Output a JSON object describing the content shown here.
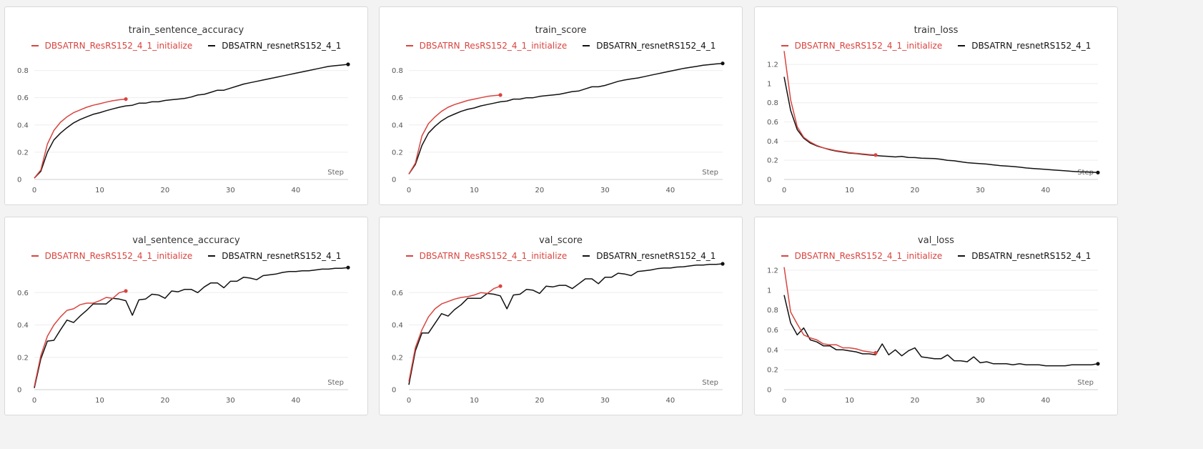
{
  "chart_data": [
    {
      "type": "line",
      "title": "train_sentence_accuracy",
      "xlabel": "Step",
      "xlim": [
        0,
        48
      ],
      "ylim": [
        0,
        0.95
      ],
      "xticks": [
        0,
        10,
        20,
        30,
        40
      ],
      "yticks": [
        0,
        0.2,
        0.4,
        0.6,
        0.8
      ],
      "ytick_labels": [
        "0",
        "0.2",
        "0.4",
        "0.6",
        "0.8"
      ],
      "legend_position": "top-center",
      "grid": true,
      "series": [
        {
          "name": "DBSATRN_ResRS152_4_1_initialize",
          "color": "#d9443f",
          "x": [
            0,
            1,
            2,
            3,
            4,
            5,
            6,
            7,
            8,
            9,
            10,
            11,
            12,
            13,
            14
          ],
          "y": [
            0.01,
            0.07,
            0.26,
            0.36,
            0.42,
            0.46,
            0.49,
            0.51,
            0.53,
            0.545,
            0.556,
            0.568,
            0.578,
            0.585,
            0.59
          ]
        },
        {
          "name": "DBSATRN_resnetRS152_4_1",
          "color": "#111111",
          "x": [
            0,
            1,
            2,
            3,
            4,
            5,
            6,
            7,
            8,
            9,
            10,
            11,
            12,
            13,
            14,
            15,
            16,
            17,
            18,
            19,
            20,
            21,
            22,
            23,
            24,
            25,
            26,
            27,
            28,
            29,
            30,
            31,
            32,
            33,
            34,
            35,
            36,
            37,
            38,
            39,
            40,
            41,
            42,
            43,
            44,
            45,
            46,
            47,
            48
          ],
          "y": [
            0.01,
            0.06,
            0.2,
            0.29,
            0.34,
            0.38,
            0.415,
            0.44,
            0.46,
            0.478,
            0.49,
            0.505,
            0.518,
            0.53,
            0.54,
            0.545,
            0.56,
            0.56,
            0.57,
            0.57,
            0.58,
            0.585,
            0.59,
            0.595,
            0.605,
            0.62,
            0.625,
            0.64,
            0.655,
            0.655,
            0.67,
            0.685,
            0.7,
            0.71,
            0.72,
            0.73,
            0.74,
            0.75,
            0.76,
            0.77,
            0.78,
            0.79,
            0.8,
            0.81,
            0.82,
            0.83,
            0.835,
            0.84,
            0.845
          ]
        }
      ]
    },
    {
      "type": "line",
      "title": "train_score",
      "xlabel": "Step",
      "xlim": [
        0,
        48
      ],
      "ylim": [
        0,
        0.95
      ],
      "xticks": [
        0,
        10,
        20,
        30,
        40
      ],
      "yticks": [
        0,
        0.2,
        0.4,
        0.6,
        0.8
      ],
      "ytick_labels": [
        "0",
        "0.2",
        "0.4",
        "0.6",
        "0.8"
      ],
      "legend_position": "top-center",
      "grid": true,
      "series": [
        {
          "name": "DBSATRN_ResRS152_4_1_initialize",
          "color": "#d9443f",
          "x": [
            0,
            1,
            2,
            3,
            4,
            5,
            6,
            7,
            8,
            9,
            10,
            11,
            12,
            13,
            14
          ],
          "y": [
            0.04,
            0.12,
            0.32,
            0.41,
            0.46,
            0.5,
            0.53,
            0.55,
            0.565,
            0.58,
            0.59,
            0.6,
            0.61,
            0.615,
            0.62
          ]
        },
        {
          "name": "DBSATRN_resnetRS152_4_1",
          "color": "#111111",
          "x": [
            0,
            1,
            2,
            3,
            4,
            5,
            6,
            7,
            8,
            9,
            10,
            11,
            12,
            13,
            14,
            15,
            16,
            17,
            18,
            19,
            20,
            21,
            22,
            23,
            24,
            25,
            26,
            27,
            28,
            29,
            30,
            31,
            32,
            33,
            34,
            35,
            36,
            37,
            38,
            39,
            40,
            41,
            42,
            43,
            44,
            45,
            46,
            47,
            48
          ],
          "y": [
            0.04,
            0.11,
            0.25,
            0.34,
            0.39,
            0.43,
            0.46,
            0.48,
            0.5,
            0.515,
            0.525,
            0.54,
            0.55,
            0.56,
            0.57,
            0.575,
            0.59,
            0.59,
            0.6,
            0.6,
            0.61,
            0.615,
            0.62,
            0.625,
            0.635,
            0.645,
            0.65,
            0.665,
            0.68,
            0.68,
            0.69,
            0.705,
            0.72,
            0.73,
            0.738,
            0.745,
            0.755,
            0.765,
            0.775,
            0.785,
            0.795,
            0.805,
            0.815,
            0.823,
            0.83,
            0.838,
            0.843,
            0.848,
            0.852
          ]
        }
      ]
    },
    {
      "type": "line",
      "title": "train_loss",
      "xlabel": "Step",
      "xlim": [
        0,
        48
      ],
      "ylim": [
        0,
        1.35
      ],
      "xticks": [
        0,
        10,
        20,
        30,
        40
      ],
      "yticks": [
        0,
        0.2,
        0.4,
        0.6,
        0.8,
        1,
        1.2
      ],
      "ytick_labels": [
        "0",
        "0.2",
        "0.4",
        "0.6",
        "0.8",
        "1",
        "1.2"
      ],
      "legend_position": "top-center",
      "grid": true,
      "series": [
        {
          "name": "DBSATRN_ResRS152_4_1_initialize",
          "color": "#d9443f",
          "x": [
            0,
            1,
            2,
            3,
            4,
            5,
            6,
            7,
            8,
            9,
            10,
            11,
            12,
            13,
            14
          ],
          "y": [
            1.34,
            0.83,
            0.55,
            0.44,
            0.39,
            0.355,
            0.33,
            0.315,
            0.3,
            0.29,
            0.28,
            0.273,
            0.266,
            0.26,
            0.255
          ]
        },
        {
          "name": "DBSATRN_resnetRS152_4_1",
          "color": "#111111",
          "x": [
            0,
            1,
            2,
            3,
            4,
            5,
            6,
            7,
            8,
            9,
            10,
            11,
            12,
            13,
            14,
            15,
            16,
            17,
            18,
            19,
            20,
            21,
            22,
            23,
            24,
            25,
            26,
            27,
            28,
            29,
            30,
            31,
            32,
            33,
            34,
            35,
            36,
            37,
            38,
            39,
            40,
            41,
            42,
            43,
            44,
            45,
            46,
            47,
            48
          ],
          "y": [
            1.07,
            0.72,
            0.52,
            0.43,
            0.38,
            0.35,
            0.33,
            0.31,
            0.295,
            0.285,
            0.275,
            0.27,
            0.262,
            0.255,
            0.25,
            0.245,
            0.24,
            0.235,
            0.24,
            0.23,
            0.228,
            0.222,
            0.22,
            0.218,
            0.21,
            0.2,
            0.195,
            0.185,
            0.175,
            0.17,
            0.165,
            0.16,
            0.152,
            0.145,
            0.14,
            0.135,
            0.128,
            0.12,
            0.115,
            0.11,
            0.105,
            0.1,
            0.095,
            0.09,
            0.085,
            0.08,
            0.078,
            0.075,
            0.072
          ]
        }
      ]
    },
    {
      "type": "line",
      "title": "val_sentence_accuracy",
      "xlabel": "Step",
      "xlim": [
        0,
        48
      ],
      "ylim": [
        0,
        0.8
      ],
      "xticks": [
        0,
        10,
        20,
        30,
        40
      ],
      "yticks": [
        0,
        0.2,
        0.4,
        0.6
      ],
      "ytick_labels": [
        "0",
        "0.2",
        "0.4",
        "0.6"
      ],
      "legend_position": "top-center",
      "grid": true,
      "series": [
        {
          "name": "DBSATRN_ResRS152_4_1_initialize",
          "color": "#d9443f",
          "x": [
            0,
            1,
            2,
            3,
            4,
            5,
            6,
            7,
            8,
            9,
            10,
            11,
            12,
            13,
            14
          ],
          "y": [
            0.02,
            0.21,
            0.33,
            0.4,
            0.45,
            0.49,
            0.5,
            0.525,
            0.535,
            0.535,
            0.55,
            0.57,
            0.565,
            0.6,
            0.61
          ]
        },
        {
          "name": "DBSATRN_resnetRS152_4_1",
          "color": "#111111",
          "x": [
            0,
            1,
            2,
            3,
            4,
            5,
            6,
            7,
            8,
            9,
            10,
            11,
            12,
            13,
            14,
            15,
            16,
            17,
            18,
            19,
            20,
            21,
            22,
            23,
            24,
            25,
            26,
            27,
            28,
            29,
            30,
            31,
            32,
            33,
            34,
            35,
            36,
            37,
            38,
            39,
            40,
            41,
            42,
            43,
            44,
            45,
            46,
            47,
            48
          ],
          "y": [
            0.01,
            0.19,
            0.3,
            0.305,
            0.37,
            0.43,
            0.415,
            0.455,
            0.49,
            0.53,
            0.53,
            0.53,
            0.565,
            0.56,
            0.55,
            0.46,
            0.555,
            0.56,
            0.59,
            0.585,
            0.565,
            0.61,
            0.605,
            0.62,
            0.62,
            0.6,
            0.635,
            0.66,
            0.66,
            0.63,
            0.67,
            0.67,
            0.695,
            0.69,
            0.68,
            0.705,
            0.71,
            0.715,
            0.725,
            0.73,
            0.73,
            0.735,
            0.735,
            0.74,
            0.745,
            0.745,
            0.75,
            0.75,
            0.755
          ]
        }
      ]
    },
    {
      "type": "line",
      "title": "val_score",
      "xlabel": "Step",
      "xlim": [
        0,
        48
      ],
      "ylim": [
        0,
        0.8
      ],
      "xticks": [
        0,
        10,
        20,
        30,
        40
      ],
      "yticks": [
        0,
        0.2,
        0.4,
        0.6
      ],
      "ytick_labels": [
        "0",
        "0.2",
        "0.4",
        "0.6"
      ],
      "legend_position": "top-center",
      "grid": true,
      "series": [
        {
          "name": "DBSATRN_ResRS152_4_1_initialize",
          "color": "#d9443f",
          "x": [
            0,
            1,
            2,
            3,
            4,
            5,
            6,
            7,
            8,
            9,
            10,
            11,
            12,
            13,
            14
          ],
          "y": [
            0.05,
            0.26,
            0.37,
            0.45,
            0.5,
            0.53,
            0.545,
            0.56,
            0.57,
            0.575,
            0.585,
            0.6,
            0.595,
            0.625,
            0.64
          ]
        },
        {
          "name": "DBSATRN_resnetRS152_4_1",
          "color": "#111111",
          "x": [
            0,
            1,
            2,
            3,
            4,
            5,
            6,
            7,
            8,
            9,
            10,
            11,
            12,
            13,
            14,
            15,
            16,
            17,
            18,
            19,
            20,
            21,
            22,
            23,
            24,
            25,
            26,
            27,
            28,
            29,
            30,
            31,
            32,
            33,
            34,
            35,
            36,
            37,
            38,
            39,
            40,
            41,
            42,
            43,
            44,
            45,
            46,
            47,
            48
          ],
          "y": [
            0.03,
            0.24,
            0.35,
            0.35,
            0.41,
            0.47,
            0.455,
            0.495,
            0.525,
            0.565,
            0.565,
            0.565,
            0.595,
            0.59,
            0.58,
            0.5,
            0.585,
            0.59,
            0.62,
            0.615,
            0.595,
            0.64,
            0.635,
            0.645,
            0.645,
            0.625,
            0.655,
            0.685,
            0.685,
            0.655,
            0.695,
            0.695,
            0.72,
            0.715,
            0.705,
            0.73,
            0.735,
            0.74,
            0.748,
            0.752,
            0.752,
            0.758,
            0.76,
            0.765,
            0.77,
            0.77,
            0.775,
            0.775,
            0.778
          ]
        }
      ]
    },
    {
      "type": "line",
      "title": "val_loss",
      "xlabel": "Step",
      "xlim": [
        0,
        48
      ],
      "ylim": [
        0,
        1.3
      ],
      "xticks": [
        0,
        10,
        20,
        30,
        40
      ],
      "yticks": [
        0,
        0.2,
        0.4,
        0.6,
        0.8,
        1,
        1.2
      ],
      "ytick_labels": [
        "0",
        "0.2",
        "0.4",
        "0.6",
        "0.8",
        "1",
        "1.2"
      ],
      "legend_position": "top-center",
      "grid": true,
      "series": [
        {
          "name": "DBSATRN_ResRS152_4_1_initialize",
          "color": "#d9443f",
          "x": [
            0,
            1,
            2,
            3,
            4,
            5,
            6,
            7,
            8,
            9,
            10,
            11,
            12,
            13,
            14
          ],
          "y": [
            1.23,
            0.78,
            0.66,
            0.55,
            0.52,
            0.5,
            0.46,
            0.45,
            0.45,
            0.42,
            0.42,
            0.41,
            0.39,
            0.38,
            0.37
          ]
        },
        {
          "name": "DBSATRN_resnetRS152_4_1",
          "color": "#111111",
          "x": [
            0,
            1,
            2,
            3,
            4,
            5,
            6,
            7,
            8,
            9,
            10,
            11,
            12,
            13,
            14,
            15,
            16,
            17,
            18,
            19,
            20,
            21,
            22,
            23,
            24,
            25,
            26,
            27,
            28,
            29,
            30,
            31,
            32,
            33,
            34,
            35,
            36,
            37,
            38,
            39,
            40,
            41,
            42,
            43,
            44,
            45,
            46,
            47,
            48
          ],
          "y": [
            0.95,
            0.67,
            0.55,
            0.62,
            0.5,
            0.48,
            0.44,
            0.44,
            0.4,
            0.4,
            0.39,
            0.38,
            0.36,
            0.36,
            0.35,
            0.46,
            0.35,
            0.4,
            0.34,
            0.39,
            0.42,
            0.33,
            0.32,
            0.31,
            0.31,
            0.35,
            0.29,
            0.29,
            0.28,
            0.33,
            0.27,
            0.28,
            0.26,
            0.26,
            0.26,
            0.25,
            0.26,
            0.25,
            0.25,
            0.25,
            0.24,
            0.24,
            0.24,
            0.24,
            0.25,
            0.25,
            0.25,
            0.25,
            0.26
          ]
        }
      ]
    }
  ]
}
